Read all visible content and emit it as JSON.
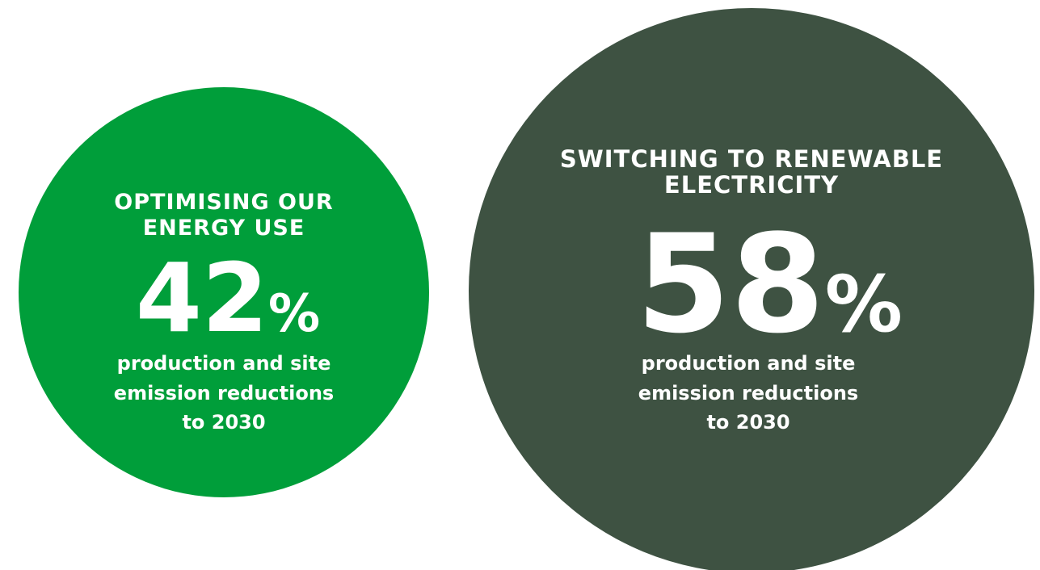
{
  "items": [
    {
      "heading": [
        "OPTIMISING OUR",
        "ENERGY USE"
      ],
      "value": "42",
      "unit": "%",
      "caption": [
        "production and site",
        "emission reductions",
        "to 2030"
      ]
    },
    {
      "heading": [
        "SWITCHING TO RENEWABLE",
        "ELECTRICITY"
      ],
      "value": "58",
      "unit": "%",
      "caption": [
        "production and site",
        "emission reductions",
        "to 2030"
      ]
    }
  ]
}
